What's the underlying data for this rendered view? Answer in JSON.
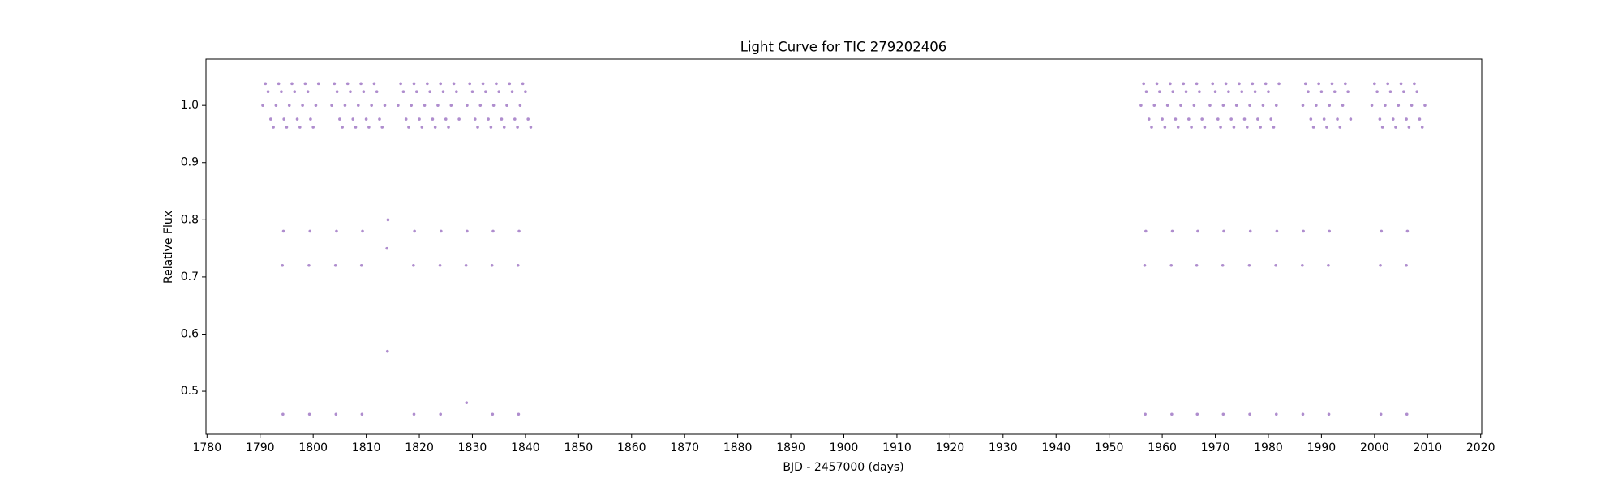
{
  "chart_data": {
    "type": "scatter",
    "title": "Light Curve for TIC 279202406",
    "xlabel": "BJD - 2457000 (days)",
    "ylabel": "Relative Flux",
    "color": "#9467bd",
    "grid": false,
    "xlim": [
      1779.8,
      2020.2
    ],
    "ylim": [
      0.425,
      1.081
    ],
    "xticks": [
      1780,
      1790,
      1800,
      1810,
      1820,
      1830,
      1840,
      1850,
      1860,
      1870,
      1880,
      1890,
      1900,
      1910,
      1920,
      1930,
      1940,
      1950,
      1960,
      1970,
      1980,
      1990,
      2000,
      2010,
      2020
    ],
    "yticks": [
      0.5,
      0.6,
      0.7,
      0.8,
      0.9,
      {
        "value": 1,
        "label": "1.0"
      }
    ],
    "x": [
      1790.5,
      1791,
      1791.5,
      1792,
      1792.5,
      1793,
      1793.5,
      1794,
      1794.5,
      1795,
      1795.5,
      1796,
      1796.5,
      1797,
      1797.5,
      1798,
      1798.5,
      1799,
      1799.5,
      1800,
      1800.5,
      1801,
      1803.5,
      1804,
      1804.5,
      1805,
      1805.5,
      1806,
      1806.5,
      1807,
      1807.5,
      1808,
      1808.5,
      1809,
      1809.5,
      1810,
      1810.5,
      1811,
      1811.5,
      1812,
      1812.5,
      1813,
      1813.5,
      1816,
      1816.5,
      1817,
      1817.5,
      1818,
      1818.5,
      1819,
      1819.5,
      1820,
      1820.5,
      1821,
      1821.5,
      1822,
      1822.5,
      1823,
      1823.5,
      1824,
      1824.5,
      1825,
      1825.5,
      1826,
      1826.5,
      1827,
      1827.5,
      1829,
      1829.5,
      1830,
      1830.5,
      1831,
      1831.5,
      1832,
      1832.5,
      1833,
      1833.5,
      1834,
      1834.5,
      1835,
      1835.5,
      1836,
      1836.5,
      1837,
      1837.5,
      1838,
      1838.5,
      1839,
      1839.5,
      1840,
      1840.5,
      1841,
      1956,
      1956.5,
      1957,
      1957.5,
      1958,
      1958.5,
      1959,
      1959.5,
      1960,
      1960.5,
      1961,
      1961.5,
      1962,
      1962.5,
      1963,
      1963.5,
      1964,
      1964.5,
      1965,
      1965.5,
      1966,
      1966.5,
      1967,
      1967.5,
      1968,
      1969,
      1969.5,
      1970,
      1970.5,
      1971,
      1971.5,
      1972,
      1972.5,
      1973,
      1973.5,
      1974,
      1974.5,
      1975,
      1975.5,
      1976,
      1976.5,
      1977,
      1977.5,
      1978,
      1978.5,
      1979,
      1979.5,
      1980,
      1980.5,
      1981,
      1981.5,
      1982,
      1986.5,
      1987,
      1987.5,
      1988,
      1988.5,
      1989,
      1989.5,
      1990,
      1990.5,
      1991,
      1991.5,
      1992,
      1992.5,
      1993,
      1993.5,
      1994,
      1994.5,
      1995,
      1995.5,
      1999.5,
      2000,
      2000.5,
      2001,
      2001.5,
      2002,
      2002.5,
      2003,
      2003.5,
      2004,
      2004.5,
      2005,
      2005.5,
      2006,
      2006.5,
      2007,
      2007.5,
      2008,
      2008.5,
      2009,
      2009.5,
      1794.2,
      1794.3,
      1794.4,
      1799.2,
      1799.3,
      1799.4,
      1804.2,
      1804.3,
      1804.4,
      1809.1,
      1809.2,
      1809.3,
      1813.9,
      1814.0,
      1814.1,
      1818.9,
      1819.0,
      1819.1,
      1823.9,
      1824.0,
      1824.1,
      1828.8,
      1828.9,
      1829.0,
      1833.7,
      1833.8,
      1833.9,
      1838.6,
      1838.7,
      1838.8,
      1956.7,
      1956.8,
      1956.9,
      1961.7,
      1961.8,
      1961.9,
      1966.5,
      1966.6,
      1966.7,
      1971.4,
      1971.5,
      1971.6,
      1976.4,
      1976.5,
      1976.6,
      1981.4,
      1981.5,
      1981.6,
      1986.4,
      1986.5,
      1986.6,
      1991.3,
      1991.4,
      1991.5,
      2001.1,
      2001.2,
      2001.3,
      2006.0,
      2006.1,
      2006.2
    ],
    "y": [
      1,
      1.038,
      1.024,
      0.976,
      0.962,
      1,
      1.038,
      1.024,
      0.976,
      0.962,
      1,
      1.038,
      1.024,
      0.976,
      0.962,
      1,
      1.038,
      1.024,
      0.976,
      0.962,
      1,
      1.038,
      1,
      1.038,
      1.024,
      0.976,
      0.962,
      1,
      1.038,
      1.024,
      0.976,
      0.962,
      1,
      1.038,
      1.024,
      0.976,
      0.962,
      1,
      1.038,
      1.024,
      0.976,
      0.962,
      1,
      1,
      1.038,
      1.024,
      0.976,
      0.962,
      1,
      1.038,
      1.024,
      0.976,
      0.962,
      1,
      1.038,
      1.024,
      0.976,
      0.962,
      1,
      1.038,
      1.024,
      0.976,
      0.962,
      1,
      1.038,
      1.024,
      0.976,
      1,
      1.038,
      1.024,
      0.976,
      0.962,
      1,
      1.038,
      1.024,
      0.976,
      0.962,
      1,
      1.038,
      1.024,
      0.976,
      0.962,
      1,
      1.038,
      1.024,
      0.976,
      0.962,
      1,
      1.038,
      1.024,
      0.976,
      0.962,
      1,
      1.038,
      1.024,
      0.976,
      0.962,
      1,
      1.038,
      1.024,
      0.976,
      0.962,
      1,
      1.038,
      1.024,
      0.976,
      0.962,
      1,
      1.038,
      1.024,
      0.976,
      0.962,
      1,
      1.038,
      1.024,
      0.976,
      0.962,
      1,
      1.038,
      1.024,
      0.976,
      0.962,
      1,
      1.038,
      1.024,
      0.976,
      0.962,
      1,
      1.038,
      1.024,
      0.976,
      0.962,
      1,
      1.038,
      1.024,
      0.976,
      0.962,
      1,
      1.038,
      1.024,
      0.976,
      0.962,
      1,
      1.038,
      1,
      1.038,
      1.024,
      0.976,
      0.962,
      1,
      1.038,
      1.024,
      0.976,
      0.962,
      1,
      1.038,
      1.024,
      0.976,
      0.962,
      1,
      1.038,
      1.024,
      0.976,
      1,
      1.038,
      1.024,
      0.976,
      0.962,
      1,
      1.038,
      1.024,
      0.976,
      0.962,
      1,
      1.038,
      1.024,
      0.976,
      0.962,
      1,
      1.038,
      1.024,
      0.976,
      0.962,
      1,
      0.72,
      0.46,
      0.78,
      0.72,
      0.46,
      0.78,
      0.72,
      0.46,
      0.78,
      0.72,
      0.46,
      0.78,
      0.75,
      0.57,
      0.8,
      0.72,
      0.46,
      0.78,
      0.72,
      0.46,
      0.78,
      0.72,
      0.48,
      0.78,
      0.72,
      0.46,
      0.78,
      0.72,
      0.46,
      0.78,
      0.72,
      0.46,
      0.78,
      0.72,
      0.46,
      0.78,
      0.72,
      0.46,
      0.78,
      0.72,
      0.46,
      0.78,
      0.72,
      0.46,
      0.78,
      0.72,
      0.46,
      0.78,
      0.72,
      0.46,
      0.78,
      0.72,
      0.46,
      0.78,
      0.72,
      0.46,
      0.78,
      0.72,
      0.46,
      0.78
    ]
  }
}
